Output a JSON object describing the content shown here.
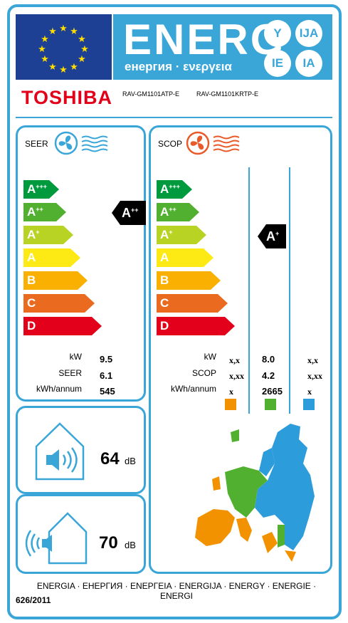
{
  "header": {
    "energy_word": "ENERG",
    "energy_sub": "енергия · ενεργεια",
    "suffixes": [
      "Y",
      "IJA",
      "IE",
      "IA"
    ]
  },
  "brand": {
    "name": "TOSHIBA",
    "model_indoor": "RAV-GM1101ATP-E",
    "model_outdoor": "RAV-GM1101KRTP-E"
  },
  "scale_labels": [
    {
      "base": "A",
      "sup": "+++",
      "color": "#009a3e"
    },
    {
      "base": "A",
      "sup": "++",
      "color": "#52b030"
    },
    {
      "base": "A",
      "sup": "+",
      "color": "#b9d325"
    },
    {
      "base": "A",
      "sup": "",
      "color": "#fdea14"
    },
    {
      "base": "B",
      "sup": "",
      "color": "#f9b000"
    },
    {
      "base": "C",
      "sup": "",
      "color": "#ea6b1f"
    },
    {
      "base": "D",
      "sup": "",
      "color": "#e2001a"
    }
  ],
  "cooling": {
    "title": "SEER",
    "rating": {
      "base": "A",
      "sup": "++"
    },
    "labels": [
      "kW",
      "SEER",
      "kWh/annum"
    ],
    "values": [
      "9.5",
      "6.1",
      "545"
    ]
  },
  "heating": {
    "title": "SCOP",
    "rating": {
      "base": "A",
      "sup": "+"
    },
    "labels": [
      "kW",
      "SCOP",
      "kWh/annum"
    ],
    "colder": [
      "x,x",
      "x,xx",
      "x"
    ],
    "average": [
      "8.0",
      "4.2",
      "2665"
    ],
    "warmer": [
      "x,x",
      "x,xx",
      "x"
    ],
    "zone_colors": [
      "#f39200",
      "#52b030",
      "#2d9cdb"
    ]
  },
  "noise": {
    "indoor_value": "64",
    "indoor_unit": "dB",
    "outdoor_value": "70",
    "outdoor_unit": "dB"
  },
  "footer": {
    "energy_languages": "ENERGIA · ЕНЕРГИЯ · ΕΝΕΡΓΕΙΑ · ENERGIJA · ENERGY · ENERGIE · ENERGI",
    "regulation": "626/2011"
  }
}
